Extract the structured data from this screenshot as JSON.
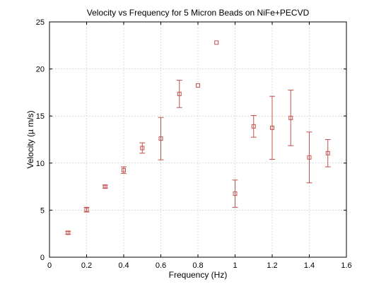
{
  "chart_data": {
    "type": "scatter",
    "title": "Velocity vs Frequency for 5 Micron Beads on NiFe+PECVD",
    "xlabel": "Frequency (Hz)",
    "ylabel": "Velocity (µ m/s)",
    "xlim": [
      0,
      1.6
    ],
    "ylim": [
      0,
      25
    ],
    "xticks": [
      0,
      0.2,
      0.4,
      0.6,
      0.8,
      1,
      1.2,
      1.4,
      1.6
    ],
    "xtick_labels": [
      "0",
      "0.2",
      "0.4",
      "0.6",
      "0.8",
      "1",
      "1.2",
      "1.4",
      "1.6"
    ],
    "yticks": [
      0,
      5,
      10,
      15,
      20,
      25
    ],
    "ytick_labels": [
      "0",
      "5",
      "10",
      "15",
      "20",
      "25"
    ],
    "grid": true,
    "marker": "square",
    "color": "#c0504d",
    "series": [
      {
        "points": [
          {
            "x": 0.1,
            "y": 2.6,
            "err": 0.15
          },
          {
            "x": 0.2,
            "y": 5.05,
            "err": 0.25
          },
          {
            "x": 0.3,
            "y": 7.5,
            "err": 0.15
          },
          {
            "x": 0.4,
            "y": 9.25,
            "err": 0.35
          },
          {
            "x": 0.5,
            "y": 11.6,
            "err": 0.55
          },
          {
            "x": 0.6,
            "y": 12.6,
            "err": 2.25
          },
          {
            "x": 0.7,
            "y": 17.35,
            "err": 1.45
          },
          {
            "x": 0.8,
            "y": 18.25,
            "err": 0.0
          },
          {
            "x": 0.9,
            "y": 22.8,
            "err": 0.0
          },
          {
            "x": 1.0,
            "y": 6.75,
            "err": 1.45
          },
          {
            "x": 1.1,
            "y": 13.9,
            "err": 1.15
          },
          {
            "x": 1.2,
            "y": 13.75,
            "err": 3.35
          },
          {
            "x": 1.3,
            "y": 14.8,
            "err": 2.95
          },
          {
            "x": 1.4,
            "y": 10.6,
            "err": 2.7
          },
          {
            "x": 1.5,
            "y": 11.05,
            "err": 1.45
          }
        ]
      }
    ]
  }
}
